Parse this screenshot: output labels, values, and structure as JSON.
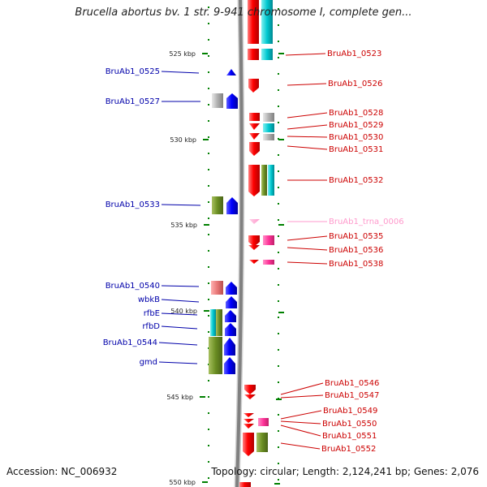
{
  "title": "Brucella abortus bv. 1 str. 9-941 chromosome I, complete gen...",
  "footer": {
    "accession": "Accession: NC_006932",
    "info": "Topology: circular; Length: 2,124,241 bp; Genes: 2,076"
  },
  "colors": {
    "forward_gene": "#0000ff",
    "reverse_gene": "#ff0000",
    "trna": "#ff99cc",
    "rrna_pink": "#ff3399",
    "cyan_feature": "#00c8d0",
    "olive_feature": "#6b8e23",
    "grey_feature": "#b0b0b0",
    "salmon_feature": "#e87878",
    "tick": "#008000",
    "chromosome_line": "#808080"
  },
  "scale": {
    "unit": "kbp",
    "ticks": [
      {
        "label": "525 kbp",
        "kbp": 525
      },
      {
        "label": "530 kbp",
        "kbp": 530
      },
      {
        "label": "535 kbp",
        "kbp": 535
      },
      {
        "label": "540 kbp",
        "kbp": 540
      },
      {
        "label": "545 kbp",
        "kbp": 545
      },
      {
        "label": "550 kbp",
        "kbp": 550
      }
    ]
  },
  "labels": {
    "left": [
      {
        "text": "BruAb1_0525",
        "color": "#0000aa"
      },
      {
        "text": "BruAb1_0527",
        "color": "#0000aa"
      },
      {
        "text": "BruAb1_0533",
        "color": "#0000aa"
      },
      {
        "text": "BruAb1_0540",
        "color": "#0000aa"
      },
      {
        "text": "wbkB",
        "color": "#0000aa"
      },
      {
        "text": "rfbE",
        "color": "#0000aa"
      },
      {
        "text": "rfbD",
        "color": "#0000aa"
      },
      {
        "text": "BruAb1_0544",
        "color": "#0000aa"
      },
      {
        "text": "gmd",
        "color": "#0000aa"
      }
    ],
    "right": [
      {
        "text": "BruAb1_0523",
        "color": "#cc0000"
      },
      {
        "text": "BruAb1_0526",
        "color": "#cc0000"
      },
      {
        "text": "BruAb1_0528",
        "color": "#cc0000"
      },
      {
        "text": "BruAb1_0529",
        "color": "#cc0000"
      },
      {
        "text": "BruAb1_0530",
        "color": "#cc0000"
      },
      {
        "text": "BruAb1_0531",
        "color": "#cc0000"
      },
      {
        "text": "BruAb1_0532",
        "color": "#cc0000"
      },
      {
        "text": "BruAb1_trna_0006",
        "color": "#ff99cc"
      },
      {
        "text": "BruAb1_0535",
        "color": "#cc0000"
      },
      {
        "text": "BruAb1_0536",
        "color": "#cc0000"
      },
      {
        "text": "BruAb1_0538",
        "color": "#cc0000"
      },
      {
        "text": "BruAb1_0546",
        "color": "#cc0000"
      },
      {
        "text": "BruAb1_0547",
        "color": "#cc0000"
      },
      {
        "text": "BruAb1_0549",
        "color": "#cc0000"
      },
      {
        "text": "BruAb1_0550",
        "color": "#cc0000"
      },
      {
        "text": "BruAb1_0551",
        "color": "#cc0000"
      },
      {
        "text": "BruAb1_0552",
        "color": "#cc0000"
      }
    ]
  }
}
